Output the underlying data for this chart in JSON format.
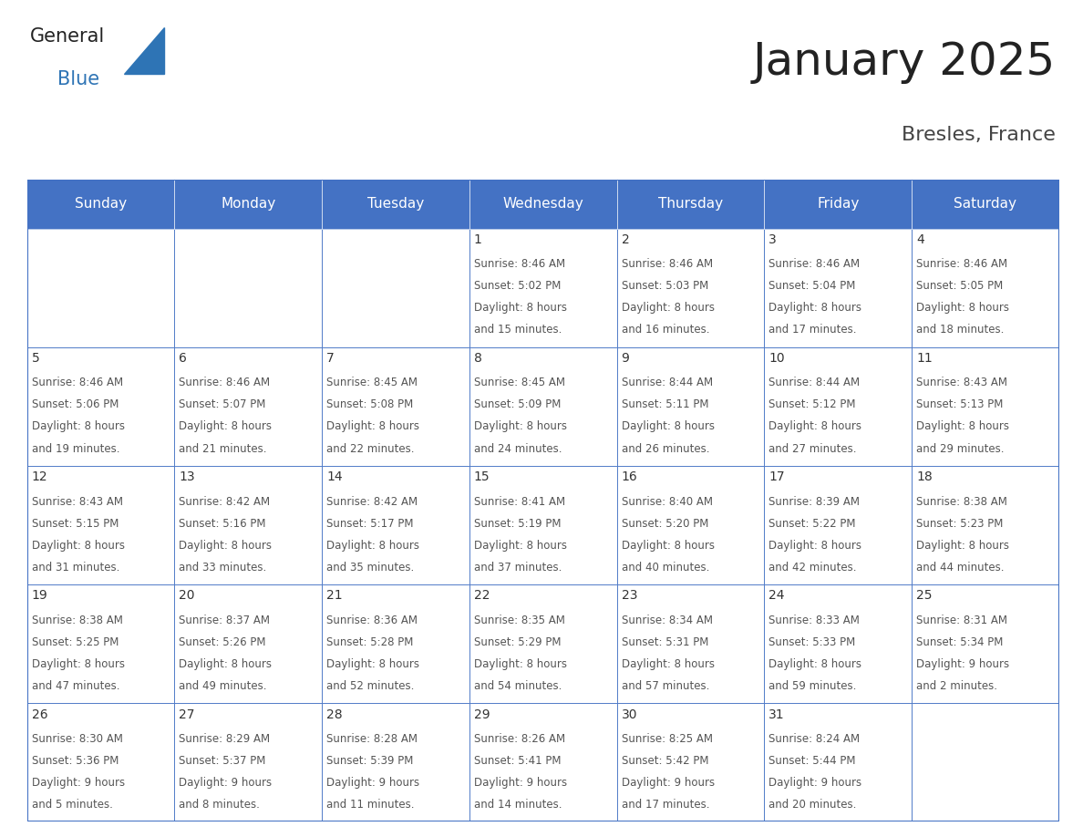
{
  "title": "January 2025",
  "subtitle": "Bresles, France",
  "days_of_week": [
    "Sunday",
    "Monday",
    "Tuesday",
    "Wednesday",
    "Thursday",
    "Friday",
    "Saturday"
  ],
  "header_bg_color": "#4472C4",
  "header_text_color": "#FFFFFF",
  "cell_bg_color": "#FFFFFF",
  "grid_color": "#4472C4",
  "text_color": "#555555",
  "day_num_color": "#333333",
  "title_color": "#222222",
  "subtitle_color": "#444444",
  "logo_general_color": "#222222",
  "logo_blue_color": "#2E74B5",
  "title_fontsize": 36,
  "subtitle_fontsize": 16,
  "header_fontsize": 11,
  "day_num_fontsize": 10,
  "cell_text_fontsize": 8.5,
  "calendar_data": [
    [
      {
        "day": null,
        "sunrise": null,
        "sunset": null,
        "daylight": null
      },
      {
        "day": null,
        "sunrise": null,
        "sunset": null,
        "daylight": null
      },
      {
        "day": null,
        "sunrise": null,
        "sunset": null,
        "daylight": null
      },
      {
        "day": 1,
        "sunrise": "8:46 AM",
        "sunset": "5:02 PM",
        "daylight": "8 hours\nand 15 minutes."
      },
      {
        "day": 2,
        "sunrise": "8:46 AM",
        "sunset": "5:03 PM",
        "daylight": "8 hours\nand 16 minutes."
      },
      {
        "day": 3,
        "sunrise": "8:46 AM",
        "sunset": "5:04 PM",
        "daylight": "8 hours\nand 17 minutes."
      },
      {
        "day": 4,
        "sunrise": "8:46 AM",
        "sunset": "5:05 PM",
        "daylight": "8 hours\nand 18 minutes."
      }
    ],
    [
      {
        "day": 5,
        "sunrise": "8:46 AM",
        "sunset": "5:06 PM",
        "daylight": "8 hours\nand 19 minutes."
      },
      {
        "day": 6,
        "sunrise": "8:46 AM",
        "sunset": "5:07 PM",
        "daylight": "8 hours\nand 21 minutes."
      },
      {
        "day": 7,
        "sunrise": "8:45 AM",
        "sunset": "5:08 PM",
        "daylight": "8 hours\nand 22 minutes."
      },
      {
        "day": 8,
        "sunrise": "8:45 AM",
        "sunset": "5:09 PM",
        "daylight": "8 hours\nand 24 minutes."
      },
      {
        "day": 9,
        "sunrise": "8:44 AM",
        "sunset": "5:11 PM",
        "daylight": "8 hours\nand 26 minutes."
      },
      {
        "day": 10,
        "sunrise": "8:44 AM",
        "sunset": "5:12 PM",
        "daylight": "8 hours\nand 27 minutes."
      },
      {
        "day": 11,
        "sunrise": "8:43 AM",
        "sunset": "5:13 PM",
        "daylight": "8 hours\nand 29 minutes."
      }
    ],
    [
      {
        "day": 12,
        "sunrise": "8:43 AM",
        "sunset": "5:15 PM",
        "daylight": "8 hours\nand 31 minutes."
      },
      {
        "day": 13,
        "sunrise": "8:42 AM",
        "sunset": "5:16 PM",
        "daylight": "8 hours\nand 33 minutes."
      },
      {
        "day": 14,
        "sunrise": "8:42 AM",
        "sunset": "5:17 PM",
        "daylight": "8 hours\nand 35 minutes."
      },
      {
        "day": 15,
        "sunrise": "8:41 AM",
        "sunset": "5:19 PM",
        "daylight": "8 hours\nand 37 minutes."
      },
      {
        "day": 16,
        "sunrise": "8:40 AM",
        "sunset": "5:20 PM",
        "daylight": "8 hours\nand 40 minutes."
      },
      {
        "day": 17,
        "sunrise": "8:39 AM",
        "sunset": "5:22 PM",
        "daylight": "8 hours\nand 42 minutes."
      },
      {
        "day": 18,
        "sunrise": "8:38 AM",
        "sunset": "5:23 PM",
        "daylight": "8 hours\nand 44 minutes."
      }
    ],
    [
      {
        "day": 19,
        "sunrise": "8:38 AM",
        "sunset": "5:25 PM",
        "daylight": "8 hours\nand 47 minutes."
      },
      {
        "day": 20,
        "sunrise": "8:37 AM",
        "sunset": "5:26 PM",
        "daylight": "8 hours\nand 49 minutes."
      },
      {
        "day": 21,
        "sunrise": "8:36 AM",
        "sunset": "5:28 PM",
        "daylight": "8 hours\nand 52 minutes."
      },
      {
        "day": 22,
        "sunrise": "8:35 AM",
        "sunset": "5:29 PM",
        "daylight": "8 hours\nand 54 minutes."
      },
      {
        "day": 23,
        "sunrise": "8:34 AM",
        "sunset": "5:31 PM",
        "daylight": "8 hours\nand 57 minutes."
      },
      {
        "day": 24,
        "sunrise": "8:33 AM",
        "sunset": "5:33 PM",
        "daylight": "8 hours\nand 59 minutes."
      },
      {
        "day": 25,
        "sunrise": "8:31 AM",
        "sunset": "5:34 PM",
        "daylight": "9 hours\nand 2 minutes."
      }
    ],
    [
      {
        "day": 26,
        "sunrise": "8:30 AM",
        "sunset": "5:36 PM",
        "daylight": "9 hours\nand 5 minutes."
      },
      {
        "day": 27,
        "sunrise": "8:29 AM",
        "sunset": "5:37 PM",
        "daylight": "9 hours\nand 8 minutes."
      },
      {
        "day": 28,
        "sunrise": "8:28 AM",
        "sunset": "5:39 PM",
        "daylight": "9 hours\nand 11 minutes."
      },
      {
        "day": 29,
        "sunrise": "8:26 AM",
        "sunset": "5:41 PM",
        "daylight": "9 hours\nand 14 minutes."
      },
      {
        "day": 30,
        "sunrise": "8:25 AM",
        "sunset": "5:42 PM",
        "daylight": "9 hours\nand 17 minutes."
      },
      {
        "day": 31,
        "sunrise": "8:24 AM",
        "sunset": "5:44 PM",
        "daylight": "9 hours\nand 20 minutes."
      },
      {
        "day": null,
        "sunrise": null,
        "sunset": null,
        "daylight": null
      }
    ]
  ]
}
